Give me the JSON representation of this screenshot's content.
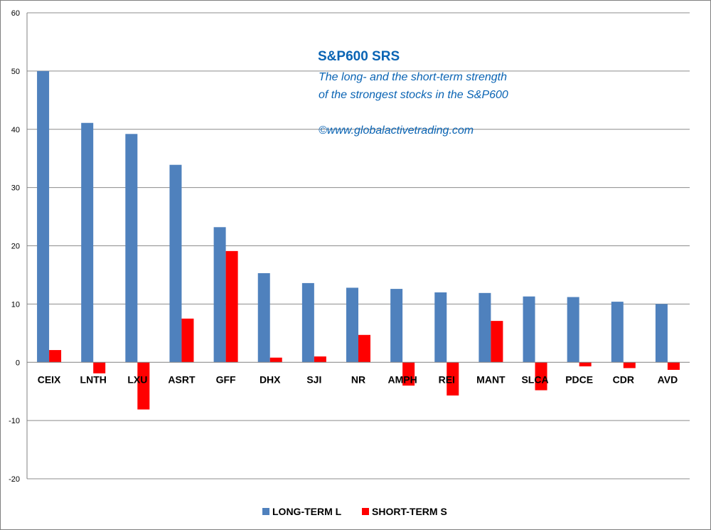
{
  "chart_data": {
    "type": "bar",
    "title": "S&P600 SRS",
    "subtitle_lines": [
      "The long- and the short-term  strength",
      "of the  strongest stocks in the S&P600"
    ],
    "copyright": "©www.globalactivetrading.com",
    "categories": [
      "CEIX",
      "LNTH",
      "LXU",
      "ASRT",
      "GFF",
      "DHX",
      "SJI",
      "NR",
      "AMPH",
      "REI",
      "MANT",
      "SLCA",
      "PDCE",
      "CDR",
      "AVD"
    ],
    "series": [
      {
        "name": "LONG-TERM L",
        "color": "#4f81bd",
        "values": [
          50,
          41.1,
          39.2,
          33.9,
          23.2,
          15.3,
          13.6,
          12.8,
          12.6,
          12.0,
          11.9,
          11.3,
          11.2,
          10.4,
          10.0
        ]
      },
      {
        "name": "SHORT-TERM S",
        "color": "#ff0000",
        "values": [
          2.1,
          -1.9,
          -8.1,
          7.5,
          19.1,
          0.8,
          1.0,
          4.7,
          -4.0,
          -5.7,
          7.1,
          -4.8,
          -0.7,
          -1.0,
          -1.3
        ]
      }
    ],
    "ylim": [
      -20,
      60
    ],
    "yticks": [
      "60",
      "50",
      "40",
      "30",
      "20",
      "10",
      "0",
      "-10",
      "-20"
    ],
    "grid": true,
    "legend_position": "bottom"
  }
}
